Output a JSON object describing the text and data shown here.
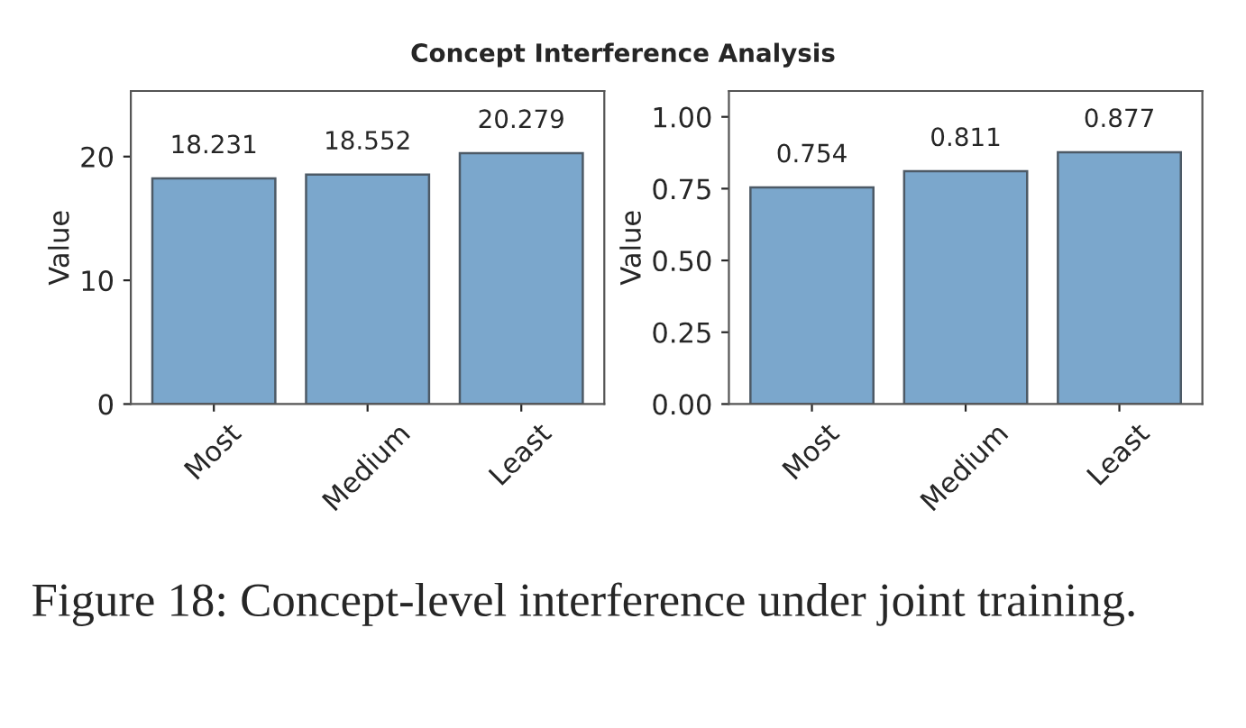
{
  "chart_data": [
    {
      "type": "bar",
      "title": "Concept Interference Analysis",
      "ylabel": "Value",
      "categories": [
        "Most",
        "Medium",
        "Least"
      ],
      "values": [
        18.231,
        18.552,
        20.279
      ],
      "color": "#7ba7cc",
      "ylim": [
        0,
        25.3
      ],
      "yticks": [
        0,
        10,
        20
      ],
      "data_labels": true,
      "grid": false,
      "legend": false
    },
    {
      "type": "bar",
      "ylabel": "Value",
      "categories": [
        "Most",
        "Medium",
        "Least"
      ],
      "values": [
        0.754,
        0.811,
        0.877
      ],
      "color": "#7ba7cc",
      "ylim": [
        0,
        1.09
      ],
      "yticks": [
        {
          "value": 0,
          "label": "0.00"
        },
        {
          "value": 0.25,
          "label": "0.25"
        },
        {
          "value": 0.5,
          "label": "0.50"
        },
        {
          "value": 0.75,
          "label": "0.75"
        },
        {
          "value": 1,
          "label": "1.00"
        }
      ],
      "data_labels": true,
      "grid": false,
      "legend": false,
      "annotations": [
        "Figure 18: Concept-level interference under joint training."
      ]
    }
  ]
}
